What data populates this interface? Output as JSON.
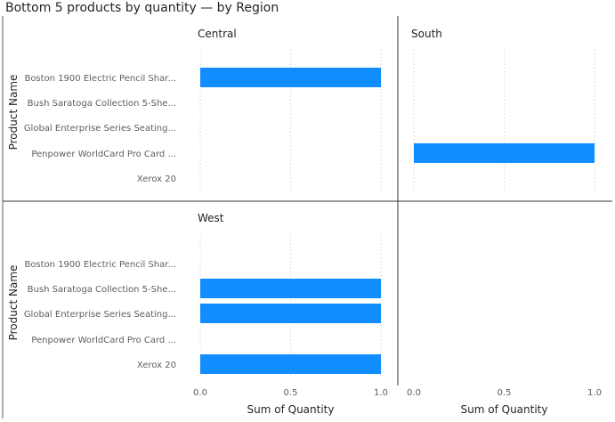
{
  "chart_data": {
    "type": "bar",
    "orientation": "horizontal",
    "title": "Bottom 5 products by quantity — by Region",
    "xlabel": "Sum of Quantity",
    "ylabel": "Product Name",
    "categories": [
      "Boston 1900 Electric Pencil Shar...",
      "Bush Saratoga Collection 5-She...",
      "Global Enterprise Series Seating...",
      "Penpower WorldCard Pro Card ...",
      "Xerox 20"
    ],
    "xlim": [
      0,
      1
    ],
    "x_ticks": [
      "0.0",
      "0.5",
      "1.0"
    ],
    "grid": true,
    "bar_color": "#118DFF",
    "panels": [
      {
        "name": "Central",
        "values": [
          1,
          null,
          null,
          null,
          null
        ]
      },
      {
        "name": "South",
        "values": [
          null,
          null,
          null,
          1,
          null
        ]
      },
      {
        "name": "West",
        "values": [
          null,
          1,
          1,
          null,
          1
        ]
      }
    ]
  }
}
